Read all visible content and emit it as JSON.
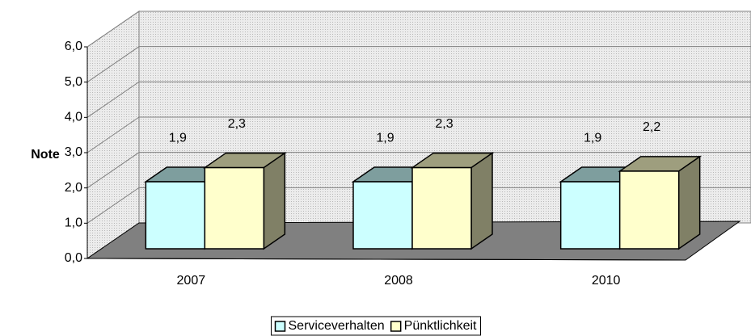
{
  "chart_data": {
    "type": "bar3d",
    "categories": [
      "2007",
      "2008",
      "2010"
    ],
    "series": [
      {
        "name": "Serviceverhalten",
        "color": "#ccffff",
        "values": [
          1.9,
          1.9,
          1.9
        ],
        "value_labels": [
          "1,9",
          "1,9",
          "1,9"
        ]
      },
      {
        "name": "Pünktlichkeit",
        "color": "#ffffcc",
        "values": [
          2.3,
          2.3,
          2.2
        ],
        "value_labels": [
          "2,3",
          "2,3",
          "2,2"
        ]
      }
    ],
    "y_label": "Note",
    "ylim": [
      0,
      6
    ],
    "yticks": [
      {
        "value": 0,
        "label": "0,0"
      },
      {
        "value": 1,
        "label": "1,0"
      },
      {
        "value": 2,
        "label": "2,0"
      },
      {
        "value": 3,
        "label": "3,0"
      },
      {
        "value": 4,
        "label": "4,0"
      },
      {
        "value": 5,
        "label": "5,0"
      },
      {
        "value": 6,
        "label": "6,0"
      }
    ],
    "grid": true,
    "legend": "bottom"
  }
}
